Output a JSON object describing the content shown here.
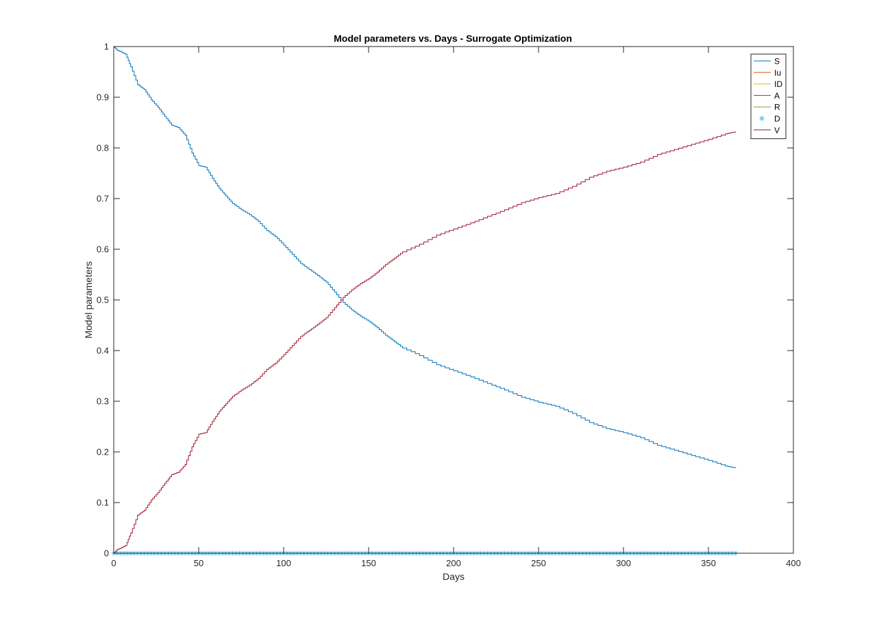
{
  "chart_data": {
    "type": "line",
    "title": "Model parameters vs. Days - Surrogate Optimization",
    "xlabel": "Days",
    "ylabel": "Model parameters",
    "xlim": [
      0,
      400
    ],
    "ylim": [
      0,
      1
    ],
    "xticks": [
      0,
      50,
      100,
      150,
      200,
      250,
      300,
      350,
      400
    ],
    "xtick_labels": [
      "0",
      "50",
      "100",
      "150",
      "200",
      "250",
      "300",
      "350",
      "400"
    ],
    "yticks": [
      0,
      0.1,
      0.2,
      0.3,
      0.4,
      0.5,
      0.6,
      0.7,
      0.8,
      0.9,
      1
    ],
    "ytick_labels": [
      "0",
      "0.1",
      "0.2",
      "0.3",
      "0.4",
      "0.5",
      "0.6",
      "0.7",
      "0.8",
      "0.9",
      "1"
    ],
    "grid": false,
    "legend_position": "top-right",
    "series": [
      {
        "name": "S",
        "color": "#0072BD",
        "style": "line",
        "x": [
          0,
          2,
          4,
          7,
          10,
          14,
          18,
          22,
          26,
          30,
          34,
          38,
          42,
          46,
          50,
          54,
          58,
          62,
          66,
          70,
          75,
          80,
          85,
          90,
          95,
          100,
          105,
          110,
          115,
          120,
          125,
          130,
          135,
          140,
          145,
          150,
          155,
          160,
          165,
          170,
          180,
          190,
          200,
          210,
          220,
          230,
          240,
          250,
          260,
          270,
          280,
          290,
          300,
          310,
          320,
          330,
          340,
          350,
          360,
          366
        ],
        "y": [
          1.0,
          0.993,
          0.99,
          0.985,
          0.96,
          0.925,
          0.915,
          0.895,
          0.88,
          0.862,
          0.845,
          0.84,
          0.825,
          0.79,
          0.765,
          0.762,
          0.74,
          0.72,
          0.705,
          0.69,
          0.678,
          0.668,
          0.655,
          0.637,
          0.625,
          0.608,
          0.59,
          0.572,
          0.56,
          0.548,
          0.535,
          0.515,
          0.495,
          0.48,
          0.468,
          0.458,
          0.445,
          0.43,
          0.418,
          0.405,
          0.39,
          0.372,
          0.36,
          0.348,
          0.335,
          0.322,
          0.308,
          0.298,
          0.29,
          0.276,
          0.258,
          0.246,
          0.238,
          0.228,
          0.213,
          0.203,
          0.193,
          0.183,
          0.172,
          0.168
        ]
      },
      {
        "name": "Iu",
        "color": "#D95319",
        "style": "line",
        "x": [
          0,
          366
        ],
        "y": [
          0,
          0
        ]
      },
      {
        "name": "ID",
        "color": "#EDB120",
        "style": "line",
        "x": [
          0,
          366
        ],
        "y": [
          0,
          0
        ]
      },
      {
        "name": "A",
        "color": "#7E2F8E",
        "style": "line",
        "x": [
          0,
          366
        ],
        "y": [
          0,
          0
        ]
      },
      {
        "name": "R",
        "color": "#77AC30",
        "style": "line",
        "x": [
          0,
          366
        ],
        "y": [
          0,
          0
        ]
      },
      {
        "name": "D",
        "color": "#4DBEEE",
        "style": "marker",
        "marker": "*",
        "x_range": [
          0,
          366
        ],
        "x_step": 2,
        "y_constant": 0
      },
      {
        "name": "V",
        "color": "#A2142F",
        "style": "line",
        "x": [
          0,
          2,
          4,
          7,
          10,
          14,
          18,
          22,
          26,
          30,
          34,
          38,
          42,
          46,
          50,
          54,
          58,
          62,
          66,
          70,
          75,
          80,
          85,
          90,
          95,
          100,
          105,
          110,
          115,
          120,
          125,
          130,
          135,
          140,
          145,
          150,
          155,
          160,
          165,
          170,
          180,
          190,
          200,
          210,
          220,
          230,
          240,
          250,
          260,
          270,
          280,
          290,
          300,
          310,
          320,
          330,
          340,
          350,
          360,
          366
        ],
        "y": [
          0.0,
          0.007,
          0.01,
          0.015,
          0.04,
          0.075,
          0.085,
          0.105,
          0.12,
          0.138,
          0.155,
          0.16,
          0.175,
          0.21,
          0.235,
          0.238,
          0.26,
          0.28,
          0.295,
          0.31,
          0.322,
          0.332,
          0.345,
          0.363,
          0.375,
          0.392,
          0.41,
          0.428,
          0.44,
          0.452,
          0.465,
          0.485,
          0.505,
          0.52,
          0.532,
          0.542,
          0.555,
          0.57,
          0.582,
          0.595,
          0.61,
          0.628,
          0.64,
          0.652,
          0.665,
          0.678,
          0.692,
          0.702,
          0.71,
          0.724,
          0.742,
          0.754,
          0.762,
          0.772,
          0.787,
          0.797,
          0.807,
          0.817,
          0.828,
          0.832
        ]
      }
    ]
  }
}
